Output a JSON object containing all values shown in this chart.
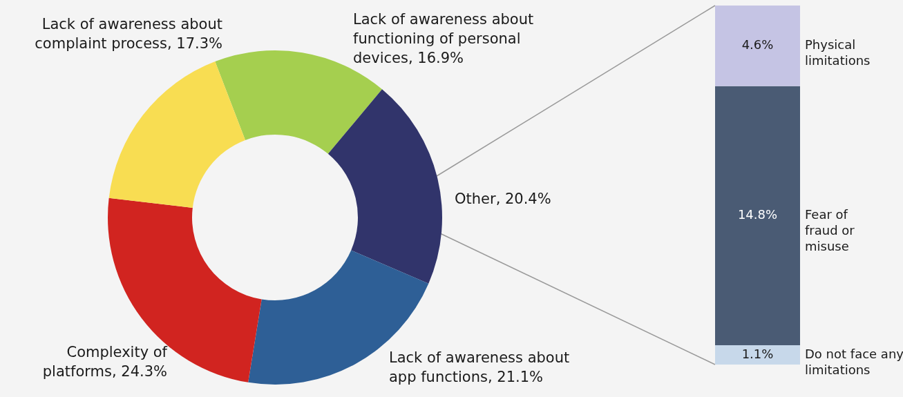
{
  "chart_data": [
    {
      "type": "donut",
      "categories": [
        "Lack of awareness about functioning of personal devices",
        "Other",
        "Lack of awareness about app functions",
        "Complexity of platforms",
        "Lack of awareness about complaint process"
      ],
      "values": [
        16.9,
        20.4,
        21.1,
        24.3,
        17.3
      ],
      "value_labels": [
        "16.9%",
        "20.4%",
        "21.1%",
        "24.3%",
        "17.3%"
      ],
      "colors": [
        "#a5cf4f",
        "#31346b",
        "#2e5f96",
        "#d12420",
        "#f8dd52"
      ]
    },
    {
      "type": "bar",
      "stacked": true,
      "categories": [
        null
      ],
      "series": [
        {
          "name": "Do not face any limitations",
          "color": "#c7d8ea",
          "values": [
            1.1
          ],
          "value_labels": [
            "1.1%"
          ]
        },
        {
          "name": "Fear of fraud or misuse",
          "color": "#4a5b74",
          "values": [
            14.8
          ],
          "value_labels": [
            "14.8%"
          ]
        },
        {
          "name": "Physical limitations",
          "color": "#c5c4e4",
          "values": [
            4.6
          ],
          "value_labels": [
            "4.6%"
          ]
        }
      ]
    }
  ]
}
